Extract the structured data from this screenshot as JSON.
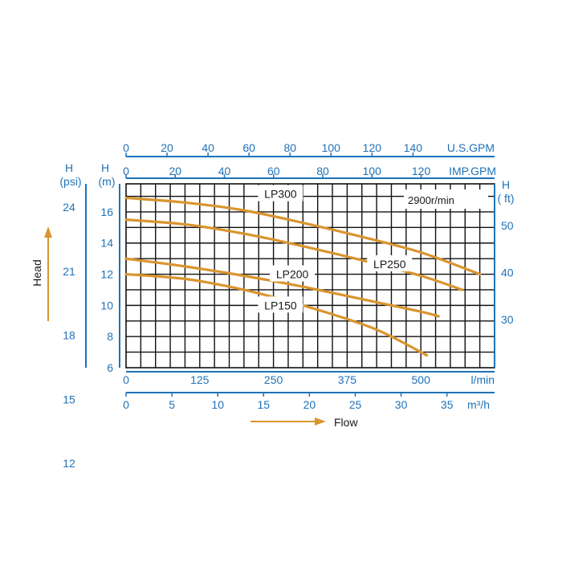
{
  "colors": {
    "axis": "#1f72b8",
    "grid": "#111111",
    "curve": "#d9952e",
    "text": "#1a1a1a"
  },
  "chart_data": {
    "type": "line",
    "title": "",
    "speed_label": "2900r/min",
    "x_label": "Flow",
    "y_label": "Head",
    "grid": true,
    "x_primary": {
      "unit": "l/min",
      "ticks": [
        0,
        125,
        250,
        375,
        500
      ],
      "range": [
        0,
        625
      ],
      "grid_step": 25
    },
    "y_primary": {
      "unit_letter": "H",
      "unit": "(m)",
      "ticks": [
        6,
        8,
        10,
        12,
        14,
        16
      ],
      "range": [
        6,
        17.8
      ],
      "grid_step": 1
    },
    "x_axes_extra": [
      {
        "id": "usgpm",
        "unit": "U.S.GPM",
        "ticks": [
          0,
          20,
          40,
          60,
          80,
          100,
          120,
          140
        ],
        "position": "top"
      },
      {
        "id": "impgpm",
        "unit": "IMP.GPM",
        "ticks": [
          0,
          20,
          40,
          60,
          80,
          100,
          120
        ],
        "position": "top"
      },
      {
        "id": "m3h",
        "unit": "m³/h",
        "ticks": [
          0,
          5,
          10,
          15,
          20,
          25,
          30,
          35
        ],
        "position": "bottom"
      }
    ],
    "y_axes_extra": [
      {
        "id": "psi",
        "unit_letter": "H",
        "unit": "(psi)",
        "ticks": [
          12,
          15,
          18,
          21,
          24
        ],
        "position": "left"
      },
      {
        "id": "ft",
        "unit_letter": "H",
        "unit": "( ft)",
        "ticks": [
          30,
          40,
          50
        ],
        "position": "right"
      }
    ],
    "series": [
      {
        "name": "LP300",
        "x": [
          0,
          100,
          200,
          300,
          400,
          500,
          600
        ],
        "y": [
          16.9,
          16.6,
          16.1,
          15.3,
          14.4,
          13.4,
          12.0
        ]
      },
      {
        "name": "LP250",
        "x": [
          0,
          100,
          200,
          300,
          400,
          500,
          570
        ],
        "y": [
          15.5,
          15.2,
          14.6,
          13.8,
          12.9,
          11.9,
          11.0
        ]
      },
      {
        "name": "LP200",
        "x": [
          0,
          100,
          200,
          300,
          400,
          500,
          530
        ],
        "y": [
          13.0,
          12.5,
          11.9,
          11.2,
          10.4,
          9.6,
          9.3
        ]
      },
      {
        "name": "LP150",
        "x": [
          0,
          100,
          200,
          300,
          400,
          450,
          510
        ],
        "y": [
          12.0,
          11.7,
          11.0,
          10.0,
          8.8,
          8.0,
          6.8
        ]
      }
    ],
    "series_labels": [
      {
        "name": "LP300",
        "x": 262,
        "y": 17.15
      },
      {
        "name": "LP250",
        "x": 447,
        "y": 12.65
      },
      {
        "name": "LP200",
        "x": 282,
        "y": 12.0
      },
      {
        "name": "LP150",
        "x": 262,
        "y": 10.0
      }
    ]
  }
}
